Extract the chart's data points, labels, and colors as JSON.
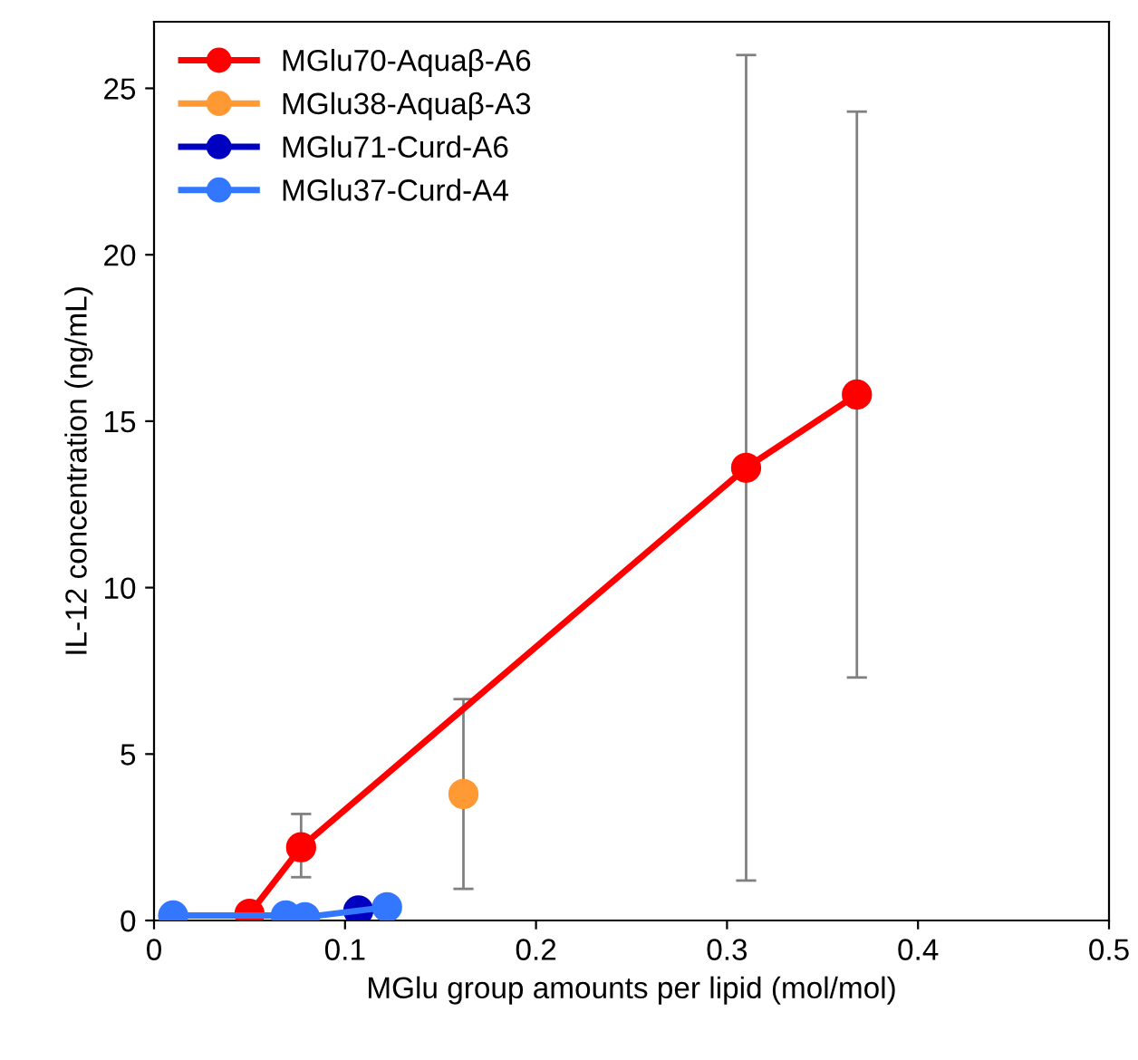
{
  "chart_data": {
    "type": "line",
    "xlabel": "MGlu group amounts per lipid (mol/mol)",
    "ylabel": "IL-12 concentration (ng/mL)",
    "xlim": [
      0,
      0.5
    ],
    "xticks": [
      0,
      0.1,
      0.2,
      0.3,
      0.4,
      0.5
    ],
    "ylim": [
      0,
      27
    ],
    "yticks": [
      0,
      5,
      10,
      15,
      20,
      25
    ],
    "grid": false,
    "legend": "top left",
    "marker": "circle",
    "line_style": "solid",
    "series": [
      {
        "name": "MGlu70-Aquaβ-A6",
        "color": "#ff0000",
        "x": [
          0.05,
          0.077,
          0.31,
          0.368
        ],
        "values": [
          0.2,
          2.2,
          13.6,
          15.8
        ],
        "errors": [
          null,
          [
            1.3,
            3.2
          ],
          [
            1.2,
            26.0
          ],
          [
            7.3,
            24.3
          ]
        ]
      },
      {
        "name": "MGlu38-Aquaβ-A3",
        "color": "#ff9933",
        "x": [
          0.162
        ],
        "values": [
          3.8
        ],
        "errors": [
          [
            0.95,
            6.65
          ]
        ]
      },
      {
        "name": "MGlu71-Curd-A6",
        "color": "#0000c0",
        "x": [
          0.107
        ],
        "values": [
          0.3
        ]
      },
      {
        "name": "MGlu37-Curd-A4",
        "color": "#3377ff",
        "x": [
          0.01,
          0.069,
          0.079,
          0.122
        ],
        "values": [
          0.15,
          0.15,
          0.1,
          0.4
        ]
      }
    ]
  }
}
